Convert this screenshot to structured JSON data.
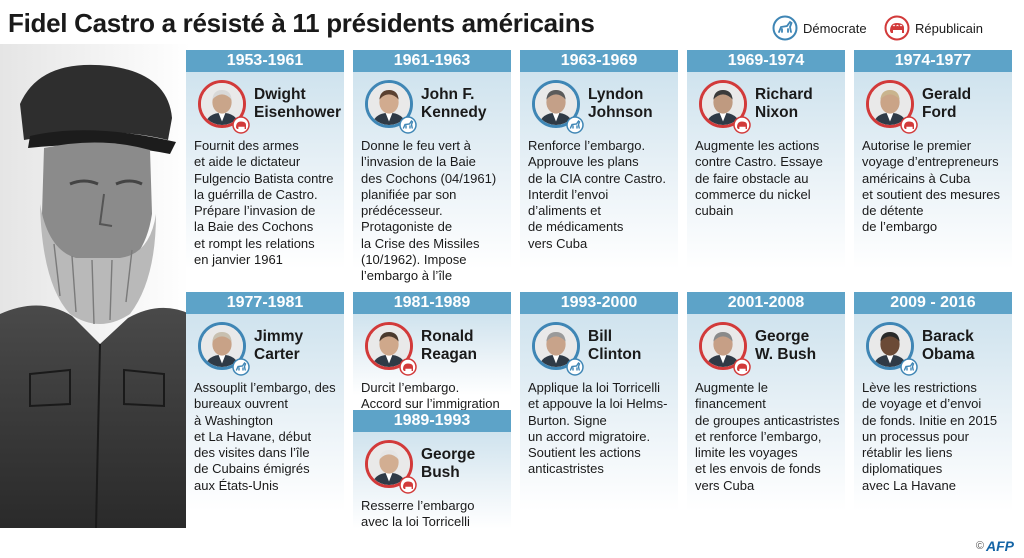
{
  "title": "Fidel Castro a résisté à 11 présidents américains",
  "legend": {
    "democrat_label": "Démocrate",
    "republican_label": "Républicain",
    "democrat_icon": "donkey-icon",
    "republican_icon": "elephant-icon"
  },
  "colors": {
    "header_blue": "#5da3c8",
    "card_bg": "#cfe3ee",
    "republican_red": "#d23a3a",
    "democrat_blue": "#3f86b5"
  },
  "presidents": [
    {
      "years": "1953-1961",
      "name": "Dwight\nEisenhower",
      "party": "republican",
      "description": "Fournit des armes\net aide le dictateur\nFulgencio Batista contre\nla guérrilla de Castro.\nPrépare l’invasion de\nla Baie des Cochons\net rompt les relations\nen janvier 1961"
    },
    {
      "years": "1961-1963",
      "name": "John F.\nKennedy",
      "party": "democrat",
      "description": "Donne le feu vert à\nl’invasion de la Baie\ndes Cochons (04/1961)\nplanifiée par son\nprédécesseur.\nProtagoniste de\nla Crise des Missiles\n(10/1962). Impose\nl’embargo à l’île"
    },
    {
      "years": "1963-1969",
      "name": "Lyndon\nJohnson",
      "party": "democrat",
      "description": "Renforce l’embargo.\nApprouve les plans\nde la CIA contre Castro.\nInterdit l’envoi\nd’aliments et\nde médicaments\nvers Cuba"
    },
    {
      "years": "1969-1974",
      "name": "Richard\nNixon",
      "party": "republican",
      "description": "Augmente les actions\ncontre Castro. Essaye\nde faire obstacle au\ncommerce du nickel\ncubain"
    },
    {
      "years": "1974-1977",
      "name": "Gerald\nFord",
      "party": "republican",
      "description": "Autorise le premier\nvoyage d’entrepreneurs\naméricains à Cuba\net soutient des mesures\nde détente\nde l’embargo"
    },
    {
      "years": "1977-1981",
      "name": "Jimmy\nCarter",
      "party": "democrat",
      "description": "Assouplit l’embargo, des\nbureaux ouvrent\nà Washington\net La Havane, début\ndes visites  dans l’île\nde Cubains émigrés\naux États-Unis"
    },
    {
      "years": "1981-1989",
      "name": "Ronald\nReagan",
      "party": "republican",
      "description": "Durcit l’embargo.\nAccord sur l’immigration"
    },
    {
      "years": "1989-1993",
      "name": "George\nBush",
      "party": "republican",
      "description": "Resserre l’embargo\navec la loi Torricelli"
    },
    {
      "years": "1993-2000",
      "name": "Bill\nClinton",
      "party": "democrat",
      "description": "Applique la loi Torricelli\net appouve la loi Helms-\nBurton. Signe\nun accord migratoire.\nSoutient les actions\nanticastristes"
    },
    {
      "years": "2001-2008",
      "name": "George\nW. Bush",
      "party": "republican",
      "description": "Augmente le financement\nde groupes anticastristes\net renforce l’embargo,\nlimite les voyages\net les envois de fonds\nvers Cuba"
    },
    {
      "years": "2009 - 2016",
      "name": "Barack\nObama",
      "party": "democrat",
      "description": "Lève les restrictions\nde voyage et d’envoi\nde fonds. Initie en 2015\nun processus pour\nrétablir les liens\ndiplomatiques\navec La Havane"
    }
  ],
  "credit": {
    "symbol": "©",
    "agency": "AFP"
  }
}
